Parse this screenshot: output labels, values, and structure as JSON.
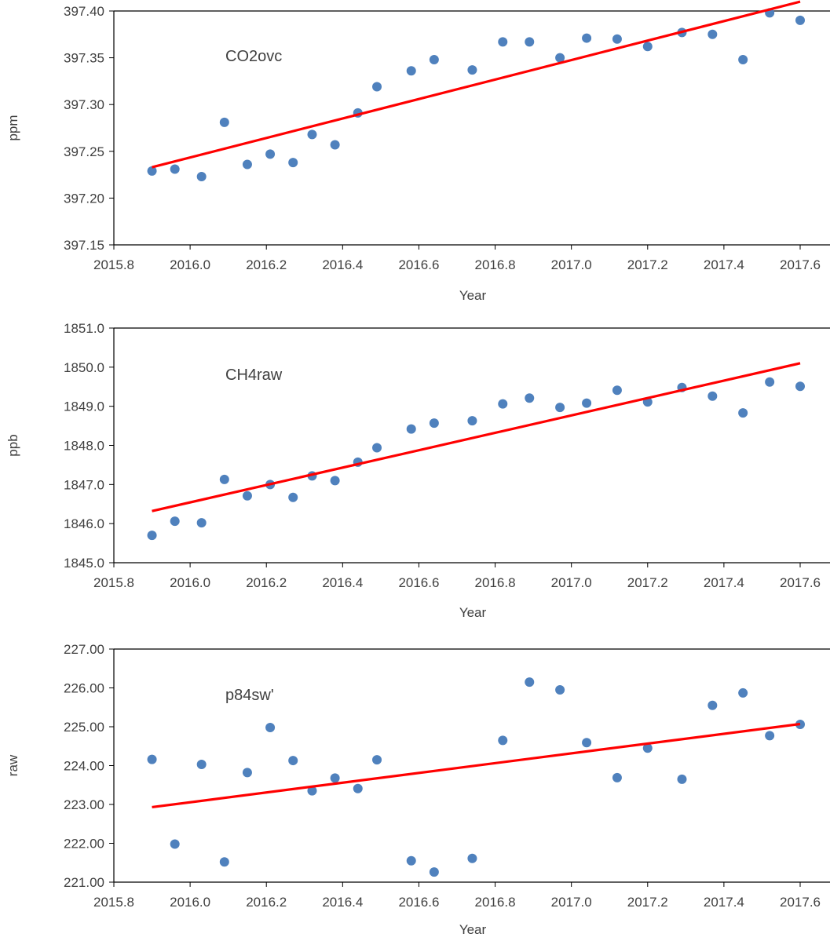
{
  "chart_data": [
    {
      "type": "scatter",
      "title": "CO2ovc",
      "xlabel": "Year",
      "ylabel": "ppm",
      "xlim": [
        2015.8,
        2017.6
      ],
      "ylim": [
        397.15,
        397.4
      ],
      "x_ticks": [
        "2015.8",
        "2016.0",
        "2016.2",
        "2016.4",
        "2016.6",
        "2016.8",
        "2017.0",
        "2017.2",
        "2017.4",
        "2017.6"
      ],
      "y_ticks": [
        "397.15",
        "397.20",
        "397.25",
        "397.30",
        "397.35",
        "397.40"
      ],
      "grid": false,
      "point_color": "#4f81bd",
      "trend_color": "#ff0000",
      "series": [
        {
          "x": [
            2015.9,
            2015.96,
            2016.03,
            2016.09,
            2016.15,
            2016.21,
            2016.27,
            2016.32,
            2016.38,
            2016.44,
            2016.49,
            2016.58,
            2016.64,
            2016.74,
            2016.82,
            2016.89,
            2016.97,
            2017.04,
            2017.12,
            2017.2,
            2017.29,
            2017.37,
            2017.45,
            2017.52,
            2017.6
          ],
          "y": [
            397.229,
            397.231,
            397.223,
            397.281,
            397.236,
            397.247,
            397.238,
            397.268,
            397.257,
            397.291,
            397.319,
            397.336,
            397.348,
            397.337,
            397.367,
            397.367,
            397.35,
            397.371,
            397.37,
            397.362,
            397.377,
            397.375,
            397.348,
            397.398,
            397.39
          ]
        }
      ],
      "trendline": {
        "x": [
          2015.9,
          2017.6
        ],
        "y": [
          397.233,
          397.41
        ]
      }
    },
    {
      "type": "scatter",
      "title": "CH4raw",
      "xlabel": "Year",
      "ylabel": "ppb",
      "xlim": [
        2015.8,
        2017.6
      ],
      "ylim": [
        1845.0,
        1851.0
      ],
      "x_ticks": [
        "2015.8",
        "2016.0",
        "2016.2",
        "2016.4",
        "2016.6",
        "2016.8",
        "2017.0",
        "2017.2",
        "2017.4",
        "2017.6"
      ],
      "y_ticks": [
        "1845.0",
        "1846.0",
        "1847.0",
        "1848.0",
        "1849.0",
        "1850.0",
        "1851.0"
      ],
      "grid": false,
      "point_color": "#4f81bd",
      "trend_color": "#ff0000",
      "series": [
        {
          "x": [
            2015.9,
            2015.96,
            2016.03,
            2016.09,
            2016.15,
            2016.21,
            2016.27,
            2016.32,
            2016.38,
            2016.44,
            2016.49,
            2016.58,
            2016.64,
            2016.74,
            2016.82,
            2016.89,
            2016.97,
            2017.04,
            2017.12,
            2017.2,
            2017.29,
            2017.37,
            2017.45,
            2017.52,
            2017.6
          ],
          "y": [
            1845.7,
            1846.06,
            1846.02,
            1847.13,
            1846.71,
            1847.0,
            1846.67,
            1847.22,
            1847.1,
            1847.57,
            1847.94,
            1848.42,
            1848.57,
            1848.63,
            1849.06,
            1849.21,
            1848.97,
            1849.08,
            1849.41,
            1849.11,
            1849.48,
            1849.26,
            1848.83,
            1849.62,
            1849.51
          ]
        }
      ],
      "trendline": {
        "x": [
          2015.9,
          2017.6
        ],
        "y": [
          1846.32,
          1850.1
        ]
      }
    },
    {
      "type": "scatter",
      "title": "p84sw'",
      "xlabel": "Year",
      "ylabel": "raw",
      "xlim": [
        2015.8,
        2017.6
      ],
      "ylim": [
        221.0,
        227.0
      ],
      "x_ticks": [
        "2015.8",
        "2016.0",
        "2016.2",
        "2016.4",
        "2016.6",
        "2016.8",
        "2017.0",
        "2017.2",
        "2017.4",
        "2017.6"
      ],
      "y_ticks": [
        "221.00",
        "222.00",
        "223.00",
        "224.00",
        "225.00",
        "226.00",
        "227.00"
      ],
      "grid": false,
      "point_color": "#4f81bd",
      "trend_color": "#ff0000",
      "series": [
        {
          "x": [
            2015.9,
            2015.96,
            2016.03,
            2016.09,
            2016.15,
            2016.21,
            2016.27,
            2016.32,
            2016.38,
            2016.44,
            2016.49,
            2016.58,
            2016.64,
            2016.74,
            2016.82,
            2016.89,
            2016.97,
            2017.04,
            2017.12,
            2017.2,
            2017.29,
            2017.37,
            2017.45,
            2017.52,
            2017.6
          ],
          "y": [
            224.16,
            221.98,
            224.03,
            221.52,
            223.82,
            224.98,
            224.13,
            223.35,
            223.68,
            223.41,
            224.15,
            221.55,
            221.26,
            221.61,
            224.65,
            226.15,
            225.95,
            224.59,
            223.69,
            224.45,
            223.65,
            225.55,
            225.87,
            224.77,
            225.06
          ]
        }
      ],
      "trendline": {
        "x": [
          2015.9,
          2017.6
        ],
        "y": [
          222.93,
          225.07
        ]
      }
    }
  ]
}
